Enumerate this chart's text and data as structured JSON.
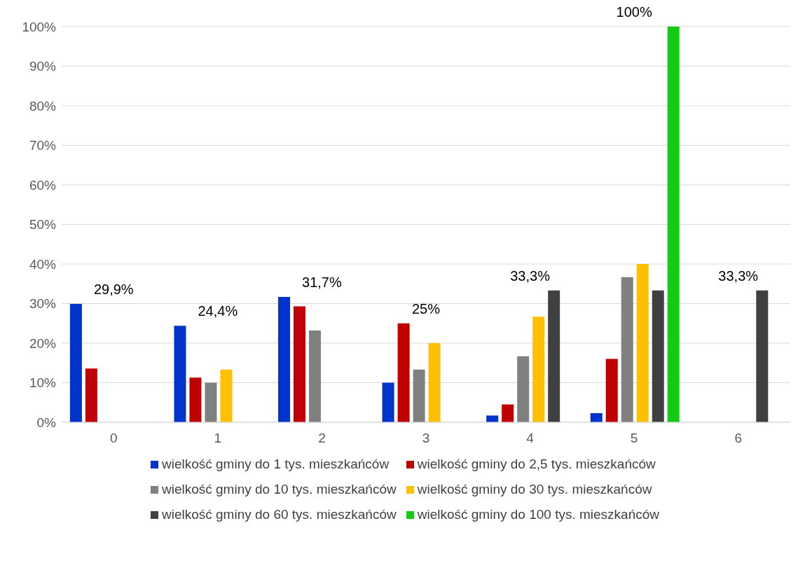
{
  "chart_data": {
    "type": "bar",
    "categories": [
      "0",
      "1",
      "2",
      "3",
      "4",
      "5",
      "6"
    ],
    "series": [
      {
        "name": "wielkość gminy do 1 tys. mieszkańców",
        "color": "#0033cc",
        "values": [
          29.9,
          24.4,
          31.7,
          10,
          1.7,
          2.3,
          null
        ]
      },
      {
        "name": "wielkość gminy do 2,5 tys. mieszkańców",
        "color": "#c00000",
        "values": [
          13.6,
          11.3,
          29.3,
          25,
          4.5,
          16,
          null
        ]
      },
      {
        "name": "wielkość gminy do 10 tys. mieszkańców",
        "color": "#808080",
        "values": [
          null,
          10,
          23.2,
          13.3,
          16.7,
          36.7,
          null
        ]
      },
      {
        "name": "wielkość gminy do 30 tys. mieszkańców",
        "color": "#ffc000",
        "values": [
          null,
          13.3,
          null,
          20,
          26.7,
          40,
          null
        ]
      },
      {
        "name": "wielkość gminy do 60 tys. mieszkańców",
        "color": "#404040",
        "values": [
          null,
          null,
          null,
          null,
          33.3,
          33.3,
          33.3
        ]
      },
      {
        "name": "wielkość gminy do 100 tys. mieszkańców",
        "color": "#11cc11",
        "values": [
          null,
          null,
          null,
          null,
          null,
          100,
          null
        ]
      }
    ],
    "ylim": [
      0,
      100
    ],
    "yticks": [
      {
        "value": 0,
        "label": "0%"
      },
      {
        "value": 10,
        "label": "10%"
      },
      {
        "value": 20,
        "label": "20%"
      },
      {
        "value": 30,
        "label": "30%"
      },
      {
        "value": 40,
        "label": "40%"
      },
      {
        "value": 50,
        "label": "50%"
      },
      {
        "value": 60,
        "label": "60%"
      },
      {
        "value": 70,
        "label": "70%"
      },
      {
        "value": 80,
        "label": "80%"
      },
      {
        "value": 90,
        "label": "90%"
      },
      {
        "value": 100,
        "label": "100%"
      }
    ],
    "grid": "y",
    "legend": "bottom",
    "annotations": [
      "29,9%",
      "24,4%",
      "31,7%",
      "25%",
      "33,3%",
      "100%",
      "33,3%"
    ]
  }
}
